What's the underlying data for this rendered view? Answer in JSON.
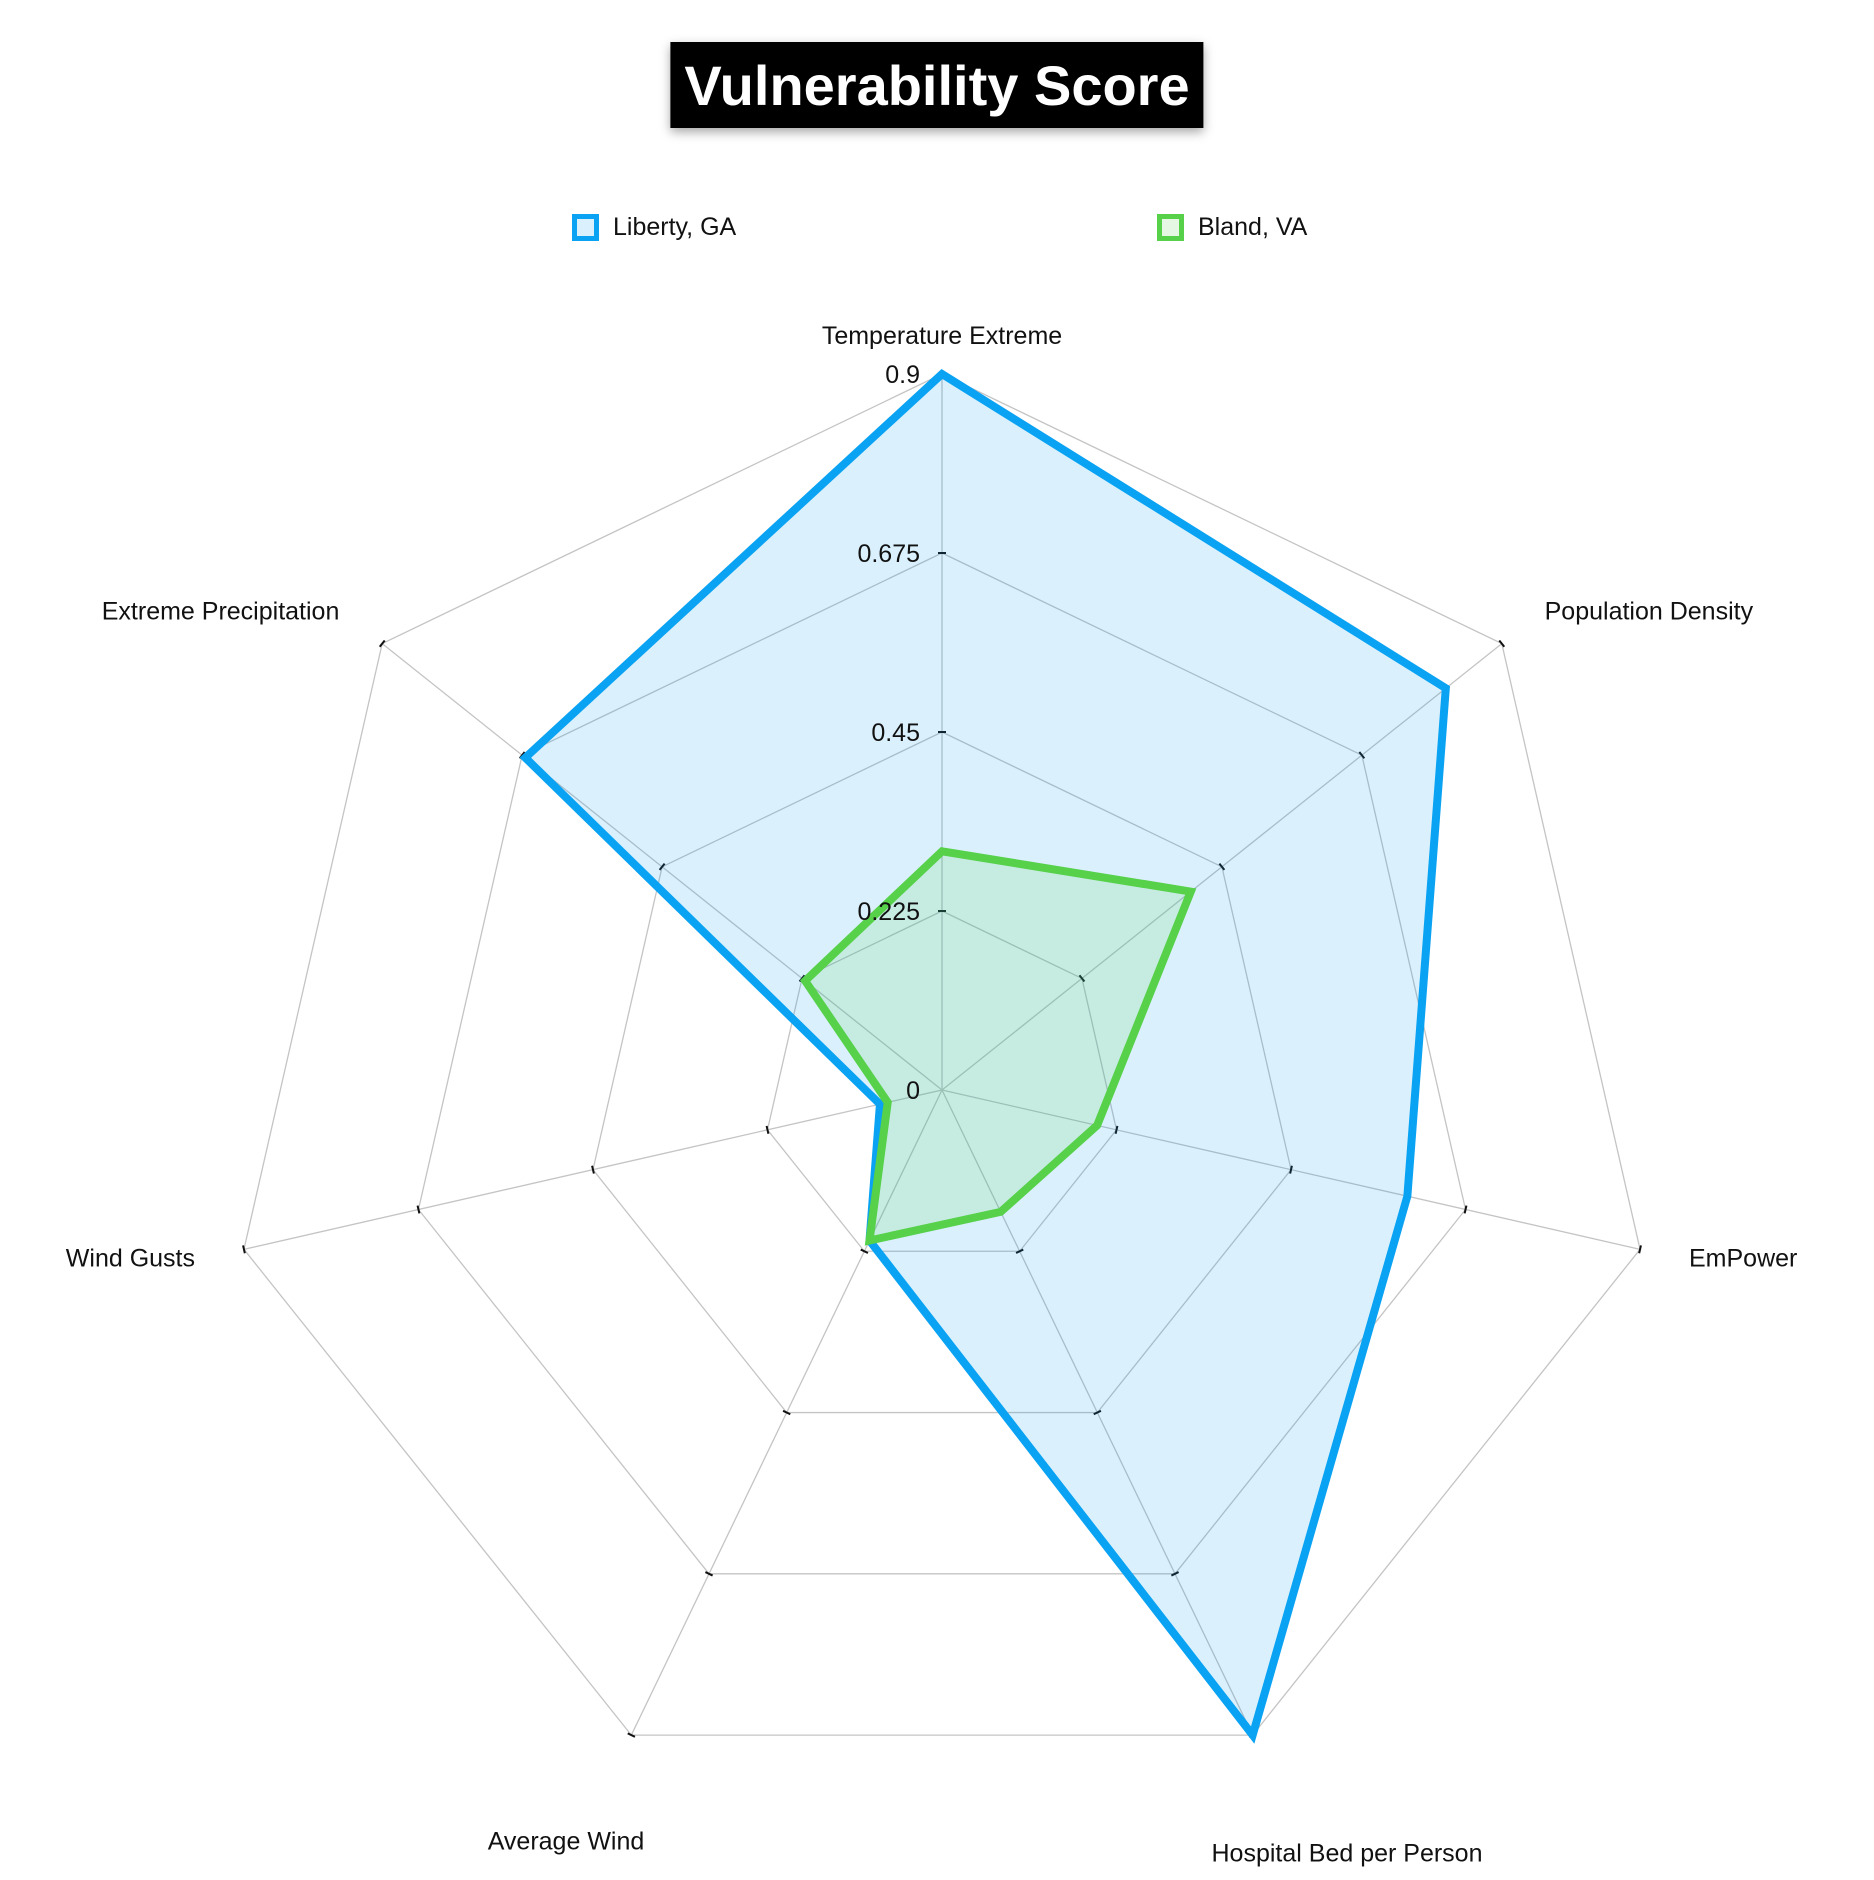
{
  "title": "Vulnerability Score",
  "colors": {
    "liberty": "#0aa2f2",
    "liberty_fill": "rgba(10,162,242,0.15)",
    "bland": "#57d04a",
    "bland_fill": "rgba(87,208,74,0.15)",
    "grid": "#c4c4c4"
  },
  "chart_data": {
    "type": "radar",
    "title": "Vulnerability Score",
    "categories": [
      "Temperature Extreme",
      "Population Density",
      "EmPower",
      "Hospital Bed per Person",
      "Average Wind",
      "Wind Gusts",
      "Extreme Precipitation"
    ],
    "tick_labels": [
      "0",
      "0.225",
      "0.45",
      "0.675",
      "0.9"
    ],
    "ticks": [
      0,
      0.225,
      0.45,
      0.675,
      0.9
    ],
    "range": [
      0,
      0.9
    ],
    "grid": true,
    "legend_position": "top",
    "series": [
      {
        "name": "Liberty, GA",
        "color": "#0aa2f2",
        "values": [
          0.9,
          0.81,
          0.6,
          0.9,
          0.21,
          0.08,
          0.67
        ]
      },
      {
        "name": "Bland, VA",
        "color": "#57d04a",
        "values": [
          0.3,
          0.4,
          0.2,
          0.17,
          0.21,
          0.07,
          0.22
        ]
      }
    ]
  }
}
